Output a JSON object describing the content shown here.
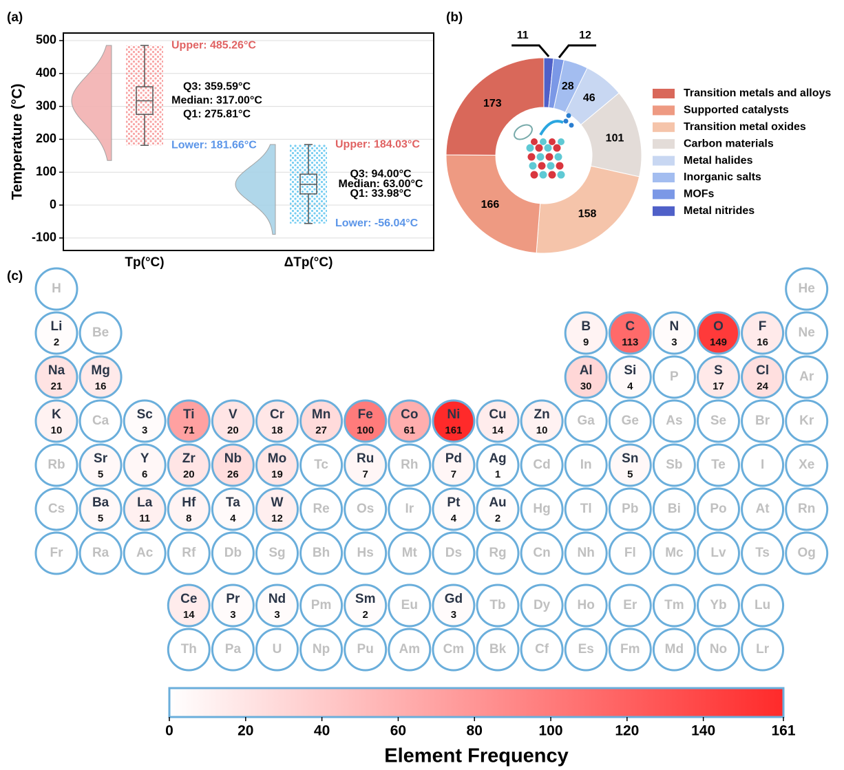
{
  "chart_data": [
    {
      "type": "raincloud",
      "panel_label": "(a)",
      "y_label": "Temperature (°C)",
      "ylim": [
        -138,
        523
      ],
      "yticks": [
        -100,
        0,
        100,
        200,
        300,
        400,
        500
      ],
      "grid": true,
      "categories": [
        "Tp(°C)",
        "ΔTp(°C)"
      ],
      "upper_color": "#e06262",
      "lower_color": "#5b95e8",
      "series": [
        {
          "color": "#f2b1b1",
          "point_color": "#f79494",
          "stats": {
            "lower": 181.66,
            "q1": 275.81,
            "median": 317.0,
            "q3": 359.59,
            "upper": 485.26
          },
          "stat_labels": {
            "lower": "Lower: 181.66°C",
            "q1": "Q1: 275.81°C",
            "median": "Median: 317.00°C",
            "q3": "Q3: 359.59°C",
            "upper": "Upper: 485.26°C"
          }
        },
        {
          "color": "#a8d3e8",
          "point_color": "#5ec4ef",
          "stats": {
            "lower": -56.04,
            "q1": 33.98,
            "median": 63.0,
            "q3": 94.0,
            "upper": 184.03
          },
          "stat_labels": {
            "lower": "Lower: -56.04°C",
            "q1": "Q1: 33.98°C",
            "median": "Median: 63.00°C",
            "q3": "Q3: 94.00°C",
            "upper": "Upper: 184.03°C"
          }
        }
      ]
    },
    {
      "type": "donut",
      "panel_label": "(b)",
      "categories": [
        "Transition metals and alloys",
        "Supported catalysts",
        "Transition metal oxides",
        "Carbon materials",
        "Metal halides",
        "Inorganic salts",
        "MOFs",
        "Metal nitrides"
      ],
      "values": [
        173,
        166,
        158,
        101,
        46,
        28,
        12,
        11
      ],
      "colors": [
        "#d9685a",
        "#ee9a82",
        "#f5c4aa",
        "#e3dcd8",
        "#c8d7f2",
        "#a3bdf0",
        "#7b98e6",
        "#4f60c8"
      ]
    },
    {
      "type": "periodic-heatmap",
      "panel_label": "(c)",
      "rows": [
        [
          {
            "symbol": "H"
          },
          null,
          null,
          null,
          null,
          null,
          null,
          null,
          null,
          null,
          null,
          null,
          null,
          null,
          null,
          null,
          null,
          {
            "symbol": "He"
          }
        ],
        [
          {
            "symbol": "Li",
            "count": 2
          },
          {
            "symbol": "Be"
          },
          null,
          null,
          null,
          null,
          null,
          null,
          null,
          null,
          null,
          null,
          {
            "symbol": "B",
            "count": 9
          },
          {
            "symbol": "C",
            "count": 113
          },
          {
            "symbol": "N",
            "count": 3
          },
          {
            "symbol": "O",
            "count": 149
          },
          {
            "symbol": "F",
            "count": 16
          },
          {
            "symbol": "Ne"
          }
        ],
        [
          {
            "symbol": "Na",
            "count": 21
          },
          {
            "symbol": "Mg",
            "count": 16
          },
          null,
          null,
          null,
          null,
          null,
          null,
          null,
          null,
          null,
          null,
          {
            "symbol": "Al",
            "count": 30
          },
          {
            "symbol": "Si",
            "count": 4
          },
          {
            "symbol": "P"
          },
          {
            "symbol": "S",
            "count": 17
          },
          {
            "symbol": "Cl",
            "count": 24
          },
          {
            "symbol": "Ar"
          }
        ],
        [
          {
            "symbol": "K",
            "count": 10
          },
          {
            "symbol": "Ca"
          },
          {
            "symbol": "Sc",
            "count": 3
          },
          {
            "symbol": "Ti",
            "count": 71
          },
          {
            "symbol": "V",
            "count": 20
          },
          {
            "symbol": "Cr",
            "count": 18
          },
          {
            "symbol": "Mn",
            "count": 27
          },
          {
            "symbol": "Fe",
            "count": 100
          },
          {
            "symbol": "Co",
            "count": 61
          },
          {
            "symbol": "Ni",
            "count": 161
          },
          {
            "symbol": "Cu",
            "count": 14
          },
          {
            "symbol": "Zn",
            "count": 10
          },
          {
            "symbol": "Ga"
          },
          {
            "symbol": "Ge"
          },
          {
            "symbol": "As"
          },
          {
            "symbol": "Se"
          },
          {
            "symbol": "Br"
          },
          {
            "symbol": "Kr"
          }
        ],
        [
          {
            "symbol": "Rb"
          },
          {
            "symbol": "Sr",
            "count": 5
          },
          {
            "symbol": "Y",
            "count": 6
          },
          {
            "symbol": "Zr",
            "count": 20
          },
          {
            "symbol": "Nb",
            "count": 26
          },
          {
            "symbol": "Mo",
            "count": 19
          },
          {
            "symbol": "Tc"
          },
          {
            "symbol": "Ru",
            "count": 7
          },
          {
            "symbol": "Rh"
          },
          {
            "symbol": "Pd",
            "count": 7
          },
          {
            "symbol": "Ag",
            "count": 1
          },
          {
            "symbol": "Cd"
          },
          {
            "symbol": "In"
          },
          {
            "symbol": "Sn",
            "count": 5
          },
          {
            "symbol": "Sb"
          },
          {
            "symbol": "Te"
          },
          {
            "symbol": "I"
          },
          {
            "symbol": "Xe"
          }
        ],
        [
          {
            "symbol": "Cs"
          },
          {
            "symbol": "Ba",
            "count": 5
          },
          {
            "symbol": "La",
            "count": 11
          },
          {
            "symbol": "Hf",
            "count": 8
          },
          {
            "symbol": "Ta",
            "count": 4
          },
          {
            "symbol": "W",
            "count": 12
          },
          {
            "symbol": "Re"
          },
          {
            "symbol": "Os"
          },
          {
            "symbol": "Ir"
          },
          {
            "symbol": "Pt",
            "count": 4
          },
          {
            "symbol": "Au",
            "count": 2
          },
          {
            "symbol": "Hg"
          },
          {
            "symbol": "Tl"
          },
          {
            "symbol": "Pb"
          },
          {
            "symbol": "Bi"
          },
          {
            "symbol": "Po"
          },
          {
            "symbol": "At"
          },
          {
            "symbol": "Rn"
          }
        ],
        [
          {
            "symbol": "Fr"
          },
          {
            "symbol": "Ra"
          },
          {
            "symbol": "Ac"
          },
          {
            "symbol": "Rf"
          },
          {
            "symbol": "Db"
          },
          {
            "symbol": "Sg"
          },
          {
            "symbol": "Bh"
          },
          {
            "symbol": "Hs"
          },
          {
            "symbol": "Mt"
          },
          {
            "symbol": "Ds"
          },
          {
            "symbol": "Rg"
          },
          {
            "symbol": "Cn"
          },
          {
            "symbol": "Nh"
          },
          {
            "symbol": "Fl"
          },
          {
            "symbol": "Mc"
          },
          {
            "symbol": "Lv"
          },
          {
            "symbol": "Ts"
          },
          {
            "symbol": "Og"
          }
        ]
      ],
      "f_block": [
        [
          {
            "symbol": "Ce",
            "count": 14
          },
          {
            "symbol": "Pr",
            "count": 3
          },
          {
            "symbol": "Nd",
            "count": 3
          },
          {
            "symbol": "Pm"
          },
          {
            "symbol": "Sm",
            "count": 2
          },
          {
            "symbol": "Eu"
          },
          {
            "symbol": "Gd",
            "count": 3
          },
          {
            "symbol": "Tb"
          },
          {
            "symbol": "Dy"
          },
          {
            "symbol": "Ho"
          },
          {
            "symbol": "Er"
          },
          {
            "symbol": "Tm"
          },
          {
            "symbol": "Yb"
          },
          {
            "symbol": "Lu"
          }
        ],
        [
          {
            "symbol": "Th"
          },
          {
            "symbol": "Pa"
          },
          {
            "symbol": "U"
          },
          {
            "symbol": "Np"
          },
          {
            "symbol": "Pu"
          },
          {
            "symbol": "Am"
          },
          {
            "symbol": "Cm"
          },
          {
            "symbol": "Bk"
          },
          {
            "symbol": "Cf"
          },
          {
            "symbol": "Es"
          },
          {
            "symbol": "Fm"
          },
          {
            "symbol": "Md"
          },
          {
            "symbol": "No"
          },
          {
            "symbol": "Lr"
          }
        ]
      ],
      "colorbar": {
        "label": "Element Frequency",
        "lim": [
          0,
          161
        ],
        "ticks": [
          0,
          20,
          40,
          60,
          80,
          100,
          120,
          140,
          161
        ],
        "colors": [
          "#ffffff",
          "#ff2a2a"
        ]
      }
    }
  ]
}
